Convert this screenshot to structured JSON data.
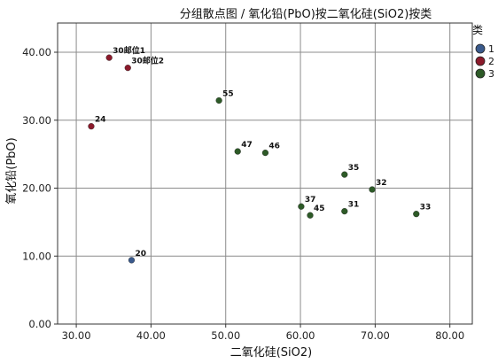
{
  "chart_data": {
    "type": "scatter",
    "title": "分组散点图 / 氧化铅(PbO)按二氧化硅(SiO2)按类",
    "xlabel": "二氧化硅(SiO2)",
    "ylabel": "氧化铅(PbO)",
    "xlim": [
      27.5,
      83.0
    ],
    "ylim": [
      0,
      44.3
    ],
    "xticks": [
      "30.00",
      "40.00",
      "50.00",
      "60.00",
      "70.00",
      "80.00"
    ],
    "xtick_values": [
      30,
      40,
      50,
      60,
      70,
      80
    ],
    "yticks": [
      "0.00",
      "10.00",
      "20.00",
      "30.00",
      "40.00"
    ],
    "ytick_values": [
      0,
      10,
      20,
      30,
      40
    ],
    "grid": true,
    "legend": {
      "title": "类",
      "placement": "right",
      "entries": [
        {
          "label": "1",
          "color": "#3a5a8c"
        },
        {
          "label": "2",
          "color": "#8b1a2b"
        },
        {
          "label": "3",
          "color": "#2d5a27"
        }
      ]
    },
    "series": [
      {
        "name": "1",
        "color": "#3a5a8c",
        "points": [
          {
            "x": 37.4,
            "y": 9.4,
            "label": "20"
          }
        ]
      },
      {
        "name": "2",
        "color": "#8b1a2b",
        "points": [
          {
            "x": 34.4,
            "y": 39.2,
            "label": "30邮位1"
          },
          {
            "x": 36.9,
            "y": 37.7,
            "label": "30邮位2"
          },
          {
            "x": 32.0,
            "y": 29.1,
            "label": "24"
          }
        ]
      },
      {
        "name": "3",
        "color": "#2d5a27",
        "points": [
          {
            "x": 49.1,
            "y": 32.9,
            "label": "55"
          },
          {
            "x": 51.6,
            "y": 25.4,
            "label": "47"
          },
          {
            "x": 55.3,
            "y": 25.2,
            "label": "46"
          },
          {
            "x": 65.9,
            "y": 22.0,
            "label": "35"
          },
          {
            "x": 69.6,
            "y": 19.8,
            "label": "32"
          },
          {
            "x": 60.1,
            "y": 17.3,
            "label": "37"
          },
          {
            "x": 61.3,
            "y": 16.0,
            "label": "45"
          },
          {
            "x": 65.9,
            "y": 16.6,
            "label": "31"
          },
          {
            "x": 75.5,
            "y": 16.2,
            "label": "33"
          }
        ]
      }
    ]
  }
}
